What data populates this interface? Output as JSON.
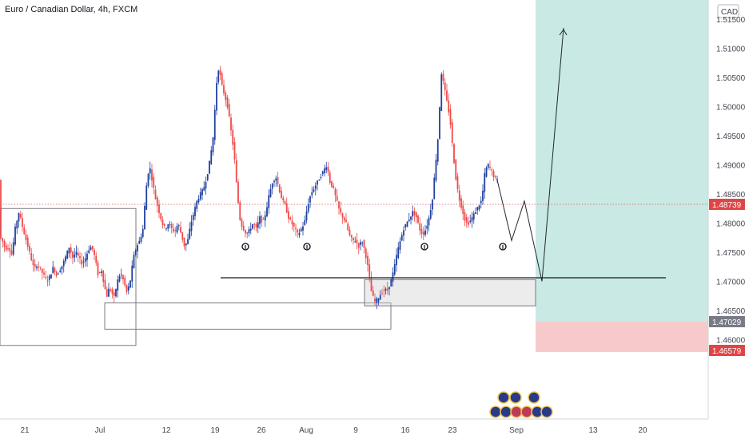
{
  "title": "Euro / Canadian Dollar, 4h, FXCM",
  "currency_button": "CAD",
  "colors": {
    "up": "#1f3fa0",
    "down": "#ef4a4a",
    "target_zone": "#b7e2dc",
    "stop_zone": "#f4c1c1",
    "price_line": "#e05555",
    "badge_red": "#e04545",
    "badge_gray": "#787b86",
    "support_line": "#131722"
  },
  "chart_data": {
    "type": "candlestick",
    "symbol": "EURCAD",
    "timeframe": "4h",
    "ylim": [
      1.4565,
      1.5175
    ],
    "y_ticks": [
      "1.51500",
      "1.51000",
      "1.50500",
      "1.50000",
      "1.49500",
      "1.49000",
      "1.48500",
      "1.48000",
      "1.47500",
      "1.47000",
      "1.46500",
      "1.46000"
    ],
    "x_ticks": [
      "21",
      "Jul",
      "12",
      "19",
      "26",
      "Aug",
      "9",
      "16",
      "23",
      "Sep",
      "13",
      "20"
    ],
    "last_price": "1.48739",
    "price_labels": {
      "entry": "1.47029",
      "stop": "1.46579"
    },
    "series_close_path": [
      [
        0,
        1.478
      ],
      [
        4,
        1.477
      ],
      [
        8,
        1.4755
      ],
      [
        12,
        1.476
      ],
      [
        16,
        1.4745
      ],
      [
        20,
        1.479
      ],
      [
        25,
        1.482
      ],
      [
        28,
        1.48
      ],
      [
        32,
        1.478
      ],
      [
        36,
        1.476
      ],
      [
        40,
        1.474
      ],
      [
        44,
        1.472
      ],
      [
        48,
        1.473
      ],
      [
        52,
        1.472
      ],
      [
        56,
        1.471
      ],
      [
        60,
        1.47
      ],
      [
        64,
        1.471
      ],
      [
        68,
        1.4725
      ],
      [
        72,
        1.471
      ],
      [
        76,
        1.472
      ],
      [
        80,
        1.473
      ],
      [
        84,
        1.4745
      ],
      [
        88,
        1.476
      ],
      [
        92,
        1.474
      ],
      [
        96,
        1.475
      ],
      [
        100,
        1.474
      ],
      [
        104,
        1.473
      ],
      [
        108,
        1.474
      ],
      [
        112,
        1.4755
      ],
      [
        116,
        1.476
      ],
      [
        120,
        1.474
      ],
      [
        124,
        1.471
      ],
      [
        128,
        1.472
      ],
      [
        132,
        1.469
      ],
      [
        135,
        1.4675
      ],
      [
        138,
        1.469
      ],
      [
        141,
        1.468
      ],
      [
        144,
        1.4672
      ],
      [
        148,
        1.47
      ],
      [
        152,
        1.4715
      ],
      [
        156,
        1.47
      ],
      [
        160,
        1.468
      ],
      [
        164,
        1.47
      ],
      [
        168,
        1.474
      ],
      [
        172,
        1.476
      ],
      [
        176,
        1.477
      ],
      [
        180,
        1.479
      ],
      [
        184,
        1.486
      ],
      [
        188,
        1.49
      ],
      [
        192,
        1.487
      ],
      [
        196,
        1.484
      ],
      [
        200,
        1.482
      ],
      [
        204,
        1.48
      ],
      [
        208,
        1.479
      ],
      [
        212,
        1.48
      ],
      [
        216,
        1.479
      ],
      [
        220,
        1.4785
      ],
      [
        224,
        1.48
      ],
      [
        228,
        1.478
      ],
      [
        232,
        1.476
      ],
      [
        236,
        1.477
      ],
      [
        240,
        1.48
      ],
      [
        244,
        1.482
      ],
      [
        248,
        1.484
      ],
      [
        252,
        1.485
      ],
      [
        256,
        1.486
      ],
      [
        260,
        1.488
      ],
      [
        264,
        1.491
      ],
      [
        268,
        1.495
      ],
      [
        272,
        1.504
      ],
      [
        275,
        1.507
      ],
      [
        278,
        1.504
      ],
      [
        282,
        1.502
      ],
      [
        286,
        1.5
      ],
      [
        290,
        1.496
      ],
      [
        294,
        1.492
      ],
      [
        298,
        1.485
      ],
      [
        302,
        1.48
      ],
      [
        306,
        1.479
      ],
      [
        310,
        1.478
      ],
      [
        314,
        1.479
      ],
      [
        318,
        1.48
      ],
      [
        322,
        1.479
      ],
      [
        326,
        1.481
      ],
      [
        330,
        1.48
      ],
      [
        334,
        1.482
      ],
      [
        338,
        1.485
      ],
      [
        342,
        1.487
      ],
      [
        346,
        1.488
      ],
      [
        350,
        1.486
      ],
      [
        354,
        1.484
      ],
      [
        358,
        1.483
      ],
      [
        362,
        1.481
      ],
      [
        366,
        1.48
      ],
      [
        370,
        1.479
      ],
      [
        374,
        1.478
      ],
      [
        378,
        1.479
      ],
      [
        382,
        1.48
      ],
      [
        386,
        1.483
      ],
      [
        390,
        1.485
      ],
      [
        394,
        1.486
      ],
      [
        398,
        1.487
      ],
      [
        402,
        1.488
      ],
      [
        406,
        1.489
      ],
      [
        410,
        1.49
      ],
      [
        414,
        1.487
      ],
      [
        418,
        1.486
      ],
      [
        422,
        1.484
      ],
      [
        426,
        1.482
      ],
      [
        430,
        1.481
      ],
      [
        434,
        1.48
      ],
      [
        438,
        1.478
      ],
      [
        442,
        1.477
      ],
      [
        446,
        1.477
      ],
      [
        450,
        1.476
      ],
      [
        454,
        1.477
      ],
      [
        458,
        1.475
      ],
      [
        462,
        1.472
      ],
      [
        466,
        1.468
      ],
      [
        470,
        1.4665
      ],
      [
        474,
        1.467
      ],
      [
        478,
        1.468
      ],
      [
        482,
        1.4685
      ],
      [
        486,
        1.4685
      ],
      [
        490,
        1.47
      ],
      [
        494,
        1.472
      ],
      [
        498,
        1.475
      ],
      [
        502,
        1.477
      ],
      [
        506,
        1.479
      ],
      [
        510,
        1.48
      ],
      [
        514,
        1.481
      ],
      [
        518,
        1.482
      ],
      [
        522,
        1.481
      ],
      [
        526,
        1.479
      ],
      [
        530,
        1.478
      ],
      [
        534,
        1.479
      ],
      [
        538,
        1.481
      ],
      [
        542,
        1.484
      ],
      [
        546,
        1.49
      ],
      [
        550,
        1.496
      ],
      [
        553,
        1.506
      ],
      [
        556,
        1.504
      ],
      [
        560,
        1.501
      ],
      [
        564,
        1.498
      ],
      [
        568,
        1.492
      ],
      [
        572,
        1.487
      ],
      [
        576,
        1.484
      ],
      [
        580,
        1.482
      ],
      [
        584,
        1.48
      ],
      [
        588,
        1.48
      ],
      [
        592,
        1.481
      ],
      [
        596,
        1.482
      ],
      [
        600,
        1.483
      ],
      [
        604,
        1.484
      ],
      [
        608,
        1.489
      ],
      [
        612,
        1.49
      ],
      [
        616,
        1.489
      ],
      [
        619,
        1.488
      ],
      [
        622,
        1.4874
      ]
    ],
    "projected_path": [
      [
        622,
        1.4874
      ],
      [
        640,
        1.477
      ],
      [
        656,
        1.4838
      ],
      [
        678,
        1.47
      ],
      [
        705,
        1.5135
      ]
    ],
    "support_level": 1.4772,
    "zones": [
      {
        "name": "left-range-box",
        "x0": 0,
        "x1": 170,
        "y0": 1.459,
        "y1": 1.4825
      },
      {
        "name": "bottom-demand-box",
        "x0": 131,
        "x1": 489,
        "y0": 1.4618,
        "y1": 1.4663
      },
      {
        "name": "entry-zone",
        "x0": 456,
        "x1": 670,
        "y0": 1.4658,
        "y1": 1.4703
      }
    ],
    "markers_x": [
      307,
      384,
      531,
      629
    ]
  }
}
